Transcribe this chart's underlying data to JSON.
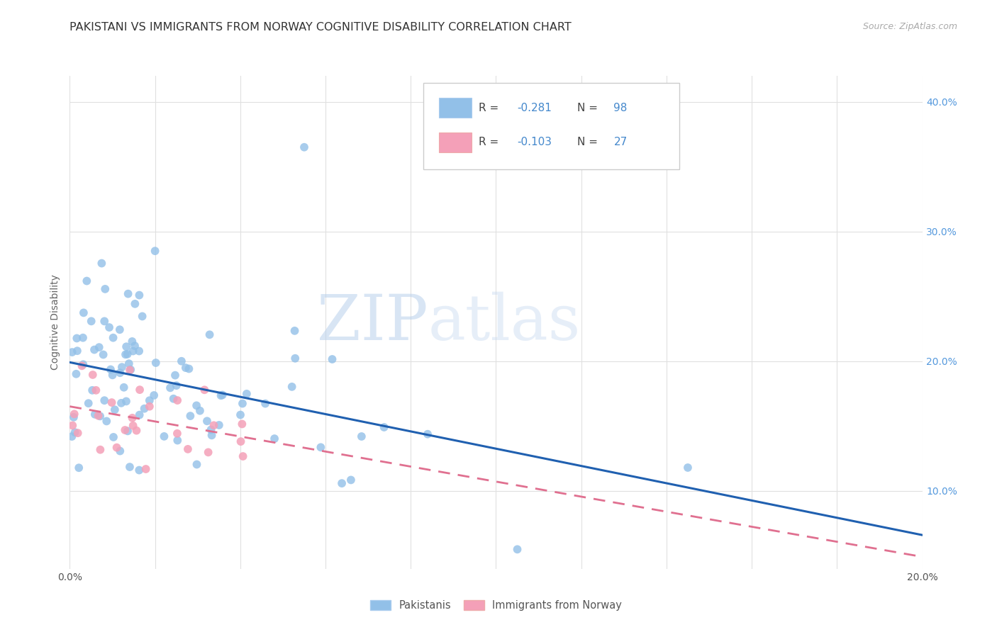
{
  "title": "PAKISTANI VS IMMIGRANTS FROM NORWAY COGNITIVE DISABILITY CORRELATION CHART",
  "source": "Source: ZipAtlas.com",
  "ylabel": "Cognitive Disability",
  "yticks": [
    0.1,
    0.2,
    0.3,
    0.4
  ],
  "ytick_labels": [
    "10.0%",
    "20.0%",
    "30.0%",
    "40.0%"
  ],
  "xlim": [
    0.0,
    0.2
  ],
  "ylim": [
    0.04,
    0.42
  ],
  "watermark_zip": "ZIP",
  "watermark_atlas": "atlas",
  "pakistanis": {
    "color": "#92c0e8",
    "trendline_color": "#2060b0",
    "R": -0.281,
    "N": 98
  },
  "norway_immigrants": {
    "color": "#f4a0b8",
    "trendline_color": "#e07090",
    "R": -0.103,
    "N": 27
  },
  "background_color": "#ffffff",
  "grid_color": "#e0e0e0",
  "title_fontsize": 11.5,
  "source_fontsize": 9,
  "axis_label_fontsize": 10,
  "tick_fontsize": 10,
  "legend_r1": "R = -0.281   N = 98",
  "legend_r2": "R = -0.103   N = 27"
}
